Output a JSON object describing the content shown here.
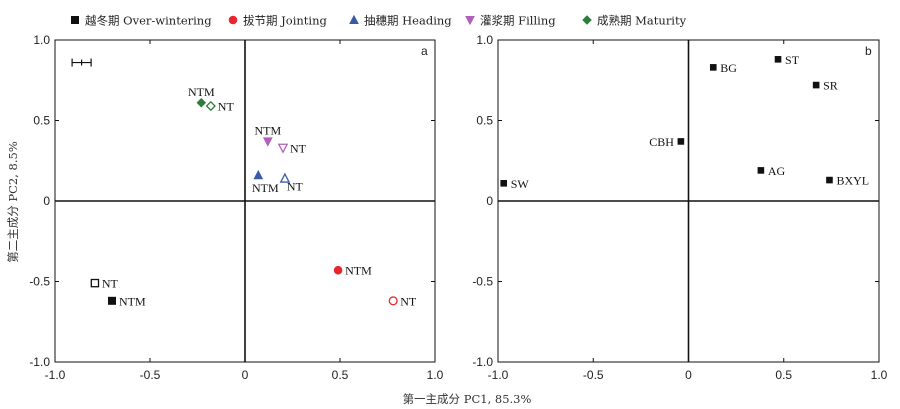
{
  "legend": [
    {
      "marker": "square-filled",
      "label": "越冬期 Over-wintering",
      "color": "#111111"
    },
    {
      "marker": "circle-filled",
      "label": "拔节期 Jointing",
      "color": "#e8262b"
    },
    {
      "marker": "triangle-up-filled",
      "label": "抽穗期 Heading",
      "color": "#3a5aa8"
    },
    {
      "marker": "triangle-down-filled",
      "label": "灌浆期 Filling",
      "color": "#b060b8"
    },
    {
      "marker": "diamond-filled",
      "label": "成熟期 Maturity",
      "color": "#2e7d3a"
    }
  ],
  "x_axis_label": "第一主成分 PC1, 85.3%",
  "y_axis_label": "第二主成分 PC2, 8.5%",
  "chart_data": [
    {
      "type": "scatter",
      "panel_label": "a",
      "xlim": [
        -1.0,
        1.0
      ],
      "ylim": [
        -1.0,
        1.0
      ],
      "xticks": [
        "-1.0",
        "-0.5",
        "0",
        "0.5",
        "1.0"
      ],
      "yticks": [
        "-1.0",
        "-0.5",
        "0",
        "0.5",
        "1.0"
      ],
      "error_bar": {
        "x": -0.86,
        "y": 0.86,
        "xerr": 0.05
      },
      "points": [
        {
          "stage": "Over-wintering",
          "label": "NT",
          "x": -0.79,
          "y": -0.51,
          "marker": "square-open",
          "color": "#111111",
          "label_pos": "right"
        },
        {
          "stage": "Over-wintering",
          "label": "NTM",
          "x": -0.7,
          "y": -0.62,
          "marker": "square-filled",
          "color": "#111111",
          "label_pos": "right"
        },
        {
          "stage": "Jointing",
          "label": "NTM",
          "x": 0.49,
          "y": -0.43,
          "marker": "circle-filled",
          "color": "#e8262b",
          "label_pos": "right"
        },
        {
          "stage": "Jointing",
          "label": "NT",
          "x": 0.78,
          "y": -0.62,
          "marker": "circle-open",
          "color": "#e8262b",
          "label_pos": "right"
        },
        {
          "stage": "Heading",
          "label": "NTM",
          "x": 0.07,
          "y": 0.16,
          "marker": "triangle-up-filled",
          "color": "#3a5aa8",
          "label_pos": "below"
        },
        {
          "stage": "Heading",
          "label": "NT",
          "x": 0.21,
          "y": 0.14,
          "marker": "triangle-up-open",
          "color": "#3a5aa8",
          "label_pos": "below-right"
        },
        {
          "stage": "Filling",
          "label": "NTM",
          "x": 0.12,
          "y": 0.37,
          "marker": "triangle-down-filled",
          "color": "#b060b8",
          "label_pos": "above"
        },
        {
          "stage": "Filling",
          "label": "NT",
          "x": 0.2,
          "y": 0.33,
          "marker": "triangle-down-open",
          "color": "#b060b8",
          "label_pos": "right"
        },
        {
          "stage": "Maturity",
          "label": "NTM",
          "x": -0.23,
          "y": 0.61,
          "marker": "diamond-filled",
          "color": "#2e7d3a",
          "label_pos": "above"
        },
        {
          "stage": "Maturity",
          "label": "NT",
          "x": -0.18,
          "y": 0.59,
          "marker": "diamond-open",
          "color": "#2e7d3a",
          "label_pos": "right"
        }
      ]
    },
    {
      "type": "scatter",
      "panel_label": "b",
      "xlim": [
        -1.0,
        1.0
      ],
      "ylim": [
        -1.0,
        1.0
      ],
      "xticks": [
        "-1.0",
        "-0.5",
        "0",
        "0.5",
        "1.0"
      ],
      "yticks": [
        "-1.0",
        "-0.5",
        "0",
        "0.5",
        "1.0"
      ],
      "points": [
        {
          "label": "BG",
          "x": 0.13,
          "y": 0.83,
          "label_pos": "right"
        },
        {
          "label": "ST",
          "x": 0.47,
          "y": 0.88,
          "label_pos": "right"
        },
        {
          "label": "SR",
          "x": 0.67,
          "y": 0.72,
          "label_pos": "right"
        },
        {
          "label": "CBH",
          "x": -0.04,
          "y": 0.37,
          "label_pos": "left"
        },
        {
          "label": "AG",
          "x": 0.38,
          "y": 0.19,
          "label_pos": "right"
        },
        {
          "label": "BXYL",
          "x": 0.74,
          "y": 0.13,
          "label_pos": "right"
        },
        {
          "label": "SW",
          "x": -0.97,
          "y": 0.11,
          "label_pos": "right"
        }
      ]
    }
  ]
}
